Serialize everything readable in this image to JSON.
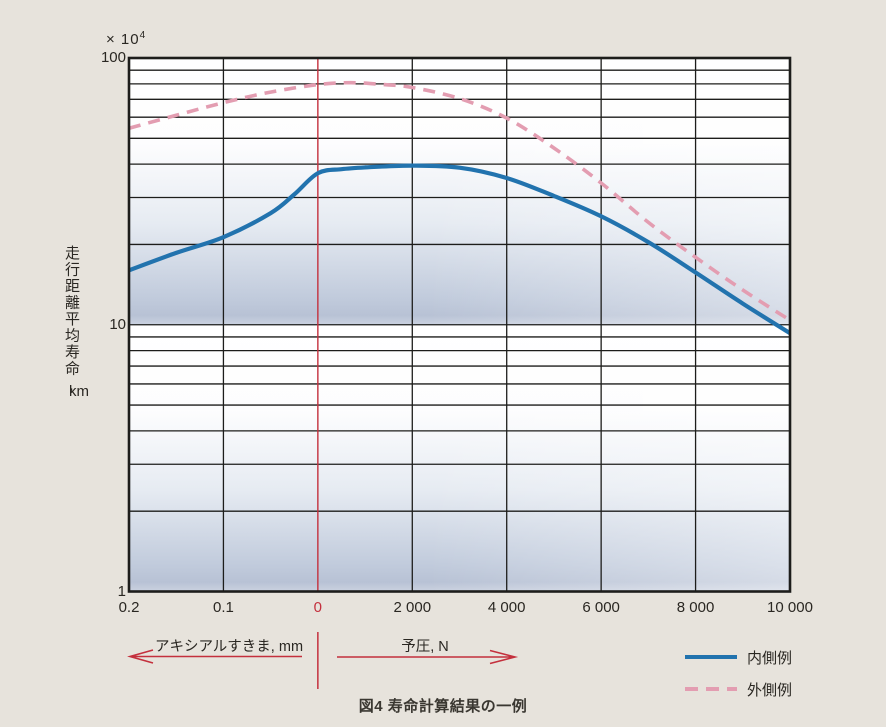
{
  "page": {
    "background": "#e7e3dc",
    "caption": "図4 寿命計算結果の一例"
  },
  "chart_data": {
    "type": "line",
    "title": "図4 寿命計算結果の一例",
    "y_axis": {
      "scale": "log",
      "range": [
        1,
        100
      ],
      "unit_note": "× 10",
      "unit_note_exp": "4",
      "ticks": [
        "100",
        "10",
        "1"
      ],
      "tick_values": [
        100,
        10,
        1
      ],
      "label_vertical": "走行距離平均寿命,",
      "label_unit": "km"
    },
    "x_axis": {
      "tick_labels": [
        "0.2",
        "0.1",
        "0",
        "2 000",
        "4 000",
        "6 000",
        "8 000",
        "10 000"
      ],
      "zero_tick_index": 2,
      "left_section_label": "アキシアルすきま, mm",
      "right_section_label": "予圧, N",
      "note": "x positions given in tick-index units: 0=0.2 mm clearance, 2=0, 7=10 000 N preload"
    },
    "series": [
      {
        "name": "内側例",
        "line_style": "solid",
        "color": "#2273ae",
        "x_t": [
          0,
          0.5,
          1,
          1.5,
          1.75,
          2,
          2.25,
          2.5,
          3,
          3.5,
          4,
          4.5,
          5,
          5.5,
          6,
          6.5,
          7
        ],
        "values": [
          16.0,
          18.6,
          21.3,
          26.2,
          30.8,
          37.0,
          38.3,
          38.9,
          39.5,
          38.8,
          35.5,
          30.4,
          25.5,
          20.4,
          15.7,
          12.0,
          9.3
        ]
      },
      {
        "name": "外側例",
        "line_style": "dashed",
        "color": "#e39db1",
        "x_t": [
          0,
          0.5,
          1,
          1.5,
          2,
          2.35,
          2.7,
          3,
          3.5,
          4,
          4.5,
          5,
          5.5,
          6,
          6.5,
          7
        ],
        "values": [
          54.5,
          61.0,
          68.0,
          74.5,
          79.5,
          80.8,
          79.5,
          77.5,
          70.5,
          59.5,
          46.0,
          34.0,
          24.2,
          17.9,
          13.5,
          10.4
        ]
      }
    ],
    "values_unit": "×10⁴ km",
    "grid": {
      "color": "#1d1d1b",
      "red_line_color": "#c4303d",
      "grid_on": true
    },
    "plot_bg": {
      "top": "#ffffff",
      "mid": "#e6ebf2",
      "deep": "#b8c2d5",
      "edge": "#cbd2e0"
    }
  },
  "legend": {
    "items": [
      {
        "label": "内側例",
        "style": "solid"
      },
      {
        "label": "外側例",
        "style": "dashed"
      }
    ]
  }
}
